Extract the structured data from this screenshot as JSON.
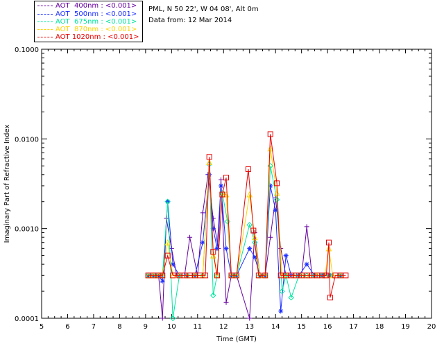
{
  "legend": [
    {
      "label": "AOT  400nm : <0.001>",
      "color": "#6600a0"
    },
    {
      "label": "AOT  500nm : <0.001>",
      "color": "#1a2cff"
    },
    {
      "label": "AOT  675nm : <0.001>",
      "color": "#00e6a0"
    },
    {
      "label": "AOT  870nm : <0.001>",
      "color": "#ffd400"
    },
    {
      "label": "AOT 1020nm : <0.001>",
      "color": "#e60000"
    }
  ],
  "site": {
    "location": "PML, N 50 22', W 04 08', Alt 0m",
    "date": "Data from: 12 Mar 2014"
  },
  "chart_data": {
    "type": "line",
    "xlabel": "Time (GMT)",
    "ylabel": "Imaginary Part of Refractive Index",
    "xlim": [
      5,
      20
    ],
    "ylim": [
      0.0001,
      0.1
    ],
    "y_scale": "log",
    "x_ticks": [
      "5",
      "6",
      "7",
      "8",
      "9",
      "10",
      "11",
      "12",
      "13",
      "14",
      "15",
      "16",
      "17",
      "18",
      "19",
      "20"
    ],
    "y_ticks": [
      {
        "value": 0.0001,
        "label": "0.0001"
      },
      {
        "value": 0.001,
        "label": "0.0010"
      },
      {
        "value": 0.01,
        "label": "0.0100"
      },
      {
        "value": 0.1,
        "label": "0.1000"
      }
    ],
    "series": [
      {
        "name": "AOT  400nm",
        "color": "#6600a0",
        "marker": "plus",
        "points": [
          [
            9.1,
            0.0003
          ],
          [
            9.3,
            0.0003
          ],
          [
            9.5,
            0.0003
          ],
          [
            9.65,
            0.0001
          ],
          [
            9.8,
            0.0013
          ],
          [
            10.0,
            0.0006
          ],
          [
            10.2,
            0.0003
          ],
          [
            10.5,
            0.0003
          ],
          [
            10.7,
            0.0008
          ],
          [
            11.0,
            0.0003
          ],
          [
            11.2,
            0.0015
          ],
          [
            11.4,
            0.004
          ],
          [
            11.6,
            0.0013
          ],
          [
            11.8,
            0.0006
          ],
          [
            11.9,
            0.0035
          ],
          [
            12.1,
            0.00015
          ],
          [
            12.3,
            0.0003
          ],
          [
            12.5,
            0.0003
          ],
          [
            13.0,
            0.0001
          ],
          [
            13.2,
            0.0009
          ],
          [
            13.4,
            0.0003
          ],
          [
            13.6,
            0.0003
          ],
          [
            13.8,
            0.0008
          ],
          [
            14.0,
            0.0022
          ],
          [
            14.2,
            0.0006
          ],
          [
            14.4,
            0.0003
          ],
          [
            14.6,
            0.0003
          ],
          [
            14.8,
            0.0003
          ],
          [
            15.0,
            0.0003
          ],
          [
            15.2,
            0.00105
          ],
          [
            15.4,
            0.0003
          ],
          [
            15.6,
            0.0003
          ],
          [
            15.8,
            0.0003
          ],
          [
            16.0,
            0.0003
          ],
          [
            16.2,
            0.0003
          ],
          [
            16.5,
            0.0003
          ]
        ]
      },
      {
        "name": "AOT  500nm",
        "color": "#1a2cff",
        "marker": "star",
        "points": [
          [
            9.1,
            0.0003
          ],
          [
            9.3,
            0.0003
          ],
          [
            9.5,
            0.0003
          ],
          [
            9.65,
            0.00026
          ],
          [
            9.85,
            0.002
          ],
          [
            10.05,
            0.0004
          ],
          [
            10.3,
            0.0003
          ],
          [
            10.6,
            0.0003
          ],
          [
            10.9,
            0.0003
          ],
          [
            11.2,
            0.0007
          ],
          [
            11.45,
            0.004
          ],
          [
            11.6,
            0.001
          ],
          [
            11.75,
            0.0006
          ],
          [
            11.9,
            0.003
          ],
          [
            12.1,
            0.0006
          ],
          [
            12.3,
            0.0003
          ],
          [
            12.5,
            0.0003
          ],
          [
            13.0,
            0.0006
          ],
          [
            13.2,
            0.00048
          ],
          [
            13.4,
            0.0003
          ],
          [
            13.6,
            0.0003
          ],
          [
            13.8,
            0.003
          ],
          [
            14.0,
            0.0016
          ],
          [
            14.2,
            0.00012
          ],
          [
            14.4,
            0.0005
          ],
          [
            14.6,
            0.0003
          ],
          [
            14.9,
            0.0003
          ],
          [
            15.2,
            0.0004
          ],
          [
            15.5,
            0.0003
          ],
          [
            15.8,
            0.0003
          ],
          [
            16.1,
            0.0003
          ],
          [
            16.5,
            0.0003
          ]
        ]
      },
      {
        "name": "AOT  675nm",
        "color": "#00e6a0",
        "marker": "diamond",
        "points": [
          [
            9.1,
            0.0003
          ],
          [
            9.3,
            0.0003
          ],
          [
            9.5,
            0.0003
          ],
          [
            9.65,
            0.0003
          ],
          [
            9.85,
            0.002
          ],
          [
            10.05,
            0.0001
          ],
          [
            10.3,
            0.0003
          ],
          [
            10.6,
            0.0003
          ],
          [
            10.9,
            0.0003
          ],
          [
            11.2,
            0.0003
          ],
          [
            11.45,
            0.0052
          ],
          [
            11.6,
            0.00018
          ],
          [
            11.75,
            0.0003
          ],
          [
            11.95,
            0.0025
          ],
          [
            12.15,
            0.0012
          ],
          [
            12.3,
            0.0003
          ],
          [
            12.5,
            0.0003
          ],
          [
            13.0,
            0.0011
          ],
          [
            13.2,
            0.0007
          ],
          [
            13.4,
            0.0003
          ],
          [
            13.6,
            0.0003
          ],
          [
            13.8,
            0.005
          ],
          [
            14.05,
            0.0021
          ],
          [
            14.25,
            0.0002
          ],
          [
            14.4,
            0.0003
          ],
          [
            14.6,
            0.00017
          ],
          [
            14.9,
            0.0003
          ],
          [
            15.2,
            0.0003
          ],
          [
            15.5,
            0.0003
          ],
          [
            15.8,
            0.0003
          ],
          [
            16.1,
            0.0003
          ],
          [
            16.5,
            0.0003
          ]
        ]
      },
      {
        "name": "AOT  870nm",
        "color": "#ffd400",
        "marker": "triangle",
        "points": [
          [
            9.1,
            0.0003
          ],
          [
            9.3,
            0.0003
          ],
          [
            9.5,
            0.0003
          ],
          [
            9.65,
            0.0003
          ],
          [
            9.85,
            0.0007
          ],
          [
            10.05,
            0.0003
          ],
          [
            10.3,
            0.0003
          ],
          [
            10.6,
            0.0003
          ],
          [
            10.9,
            0.0003
          ],
          [
            11.2,
            0.0003
          ],
          [
            11.45,
            0.0055
          ],
          [
            11.6,
            0.0005
          ],
          [
            11.75,
            0.0003
          ],
          [
            11.95,
            0.0024
          ],
          [
            12.1,
            0.0024
          ],
          [
            12.3,
            0.0003
          ],
          [
            12.5,
            0.0003
          ],
          [
            13.0,
            0.0024
          ],
          [
            13.2,
            0.0008
          ],
          [
            13.4,
            0.0003
          ],
          [
            13.6,
            0.0003
          ],
          [
            13.8,
            0.0078
          ],
          [
            14.05,
            0.0025
          ],
          [
            14.25,
            0.0003
          ],
          [
            14.45,
            0.0003
          ],
          [
            14.7,
            0.0003
          ],
          [
            15.0,
            0.0003
          ],
          [
            15.3,
            0.0003
          ],
          [
            15.6,
            0.0003
          ],
          [
            15.9,
            0.0003
          ],
          [
            16.05,
            0.0006
          ],
          [
            16.2,
            0.0003
          ],
          [
            16.5,
            0.0003
          ]
        ]
      },
      {
        "name": "AOT 1020nm",
        "color": "#e60000",
        "marker": "square",
        "points": [
          [
            9.1,
            0.0003
          ],
          [
            9.3,
            0.0003
          ],
          [
            9.5,
            0.0003
          ],
          [
            9.65,
            0.0003
          ],
          [
            9.85,
            0.0005
          ],
          [
            10.05,
            0.0003
          ],
          [
            10.3,
            0.0003
          ],
          [
            10.5,
            0.0003
          ],
          [
            10.7,
            0.0003
          ],
          [
            10.9,
            0.0003
          ],
          [
            11.1,
            0.0003
          ],
          [
            11.3,
            0.0003
          ],
          [
            11.45,
            0.0063
          ],
          [
            11.6,
            0.00055
          ],
          [
            11.75,
            0.0003
          ],
          [
            11.95,
            0.0024
          ],
          [
            12.1,
            0.0037
          ],
          [
            12.3,
            0.0003
          ],
          [
            12.5,
            0.0003
          ],
          [
            12.95,
            0.0046
          ],
          [
            13.15,
            0.00095
          ],
          [
            13.35,
            0.0003
          ],
          [
            13.6,
            0.0003
          ],
          [
            13.8,
            0.0113
          ],
          [
            14.05,
            0.0032
          ],
          [
            14.2,
            0.0003
          ],
          [
            14.4,
            0.0003
          ],
          [
            14.6,
            0.0003
          ],
          [
            14.8,
            0.0003
          ],
          [
            15.0,
            0.0003
          ],
          [
            15.2,
            0.0003
          ],
          [
            15.4,
            0.0003
          ],
          [
            15.6,
            0.0003
          ],
          [
            15.8,
            0.0003
          ],
          [
            15.95,
            0.0003
          ],
          [
            16.05,
            0.0007
          ],
          [
            16.1,
            0.00017
          ],
          [
            16.3,
            0.0003
          ],
          [
            16.5,
            0.0003
          ],
          [
            16.7,
            0.0003
          ]
        ]
      }
    ]
  }
}
